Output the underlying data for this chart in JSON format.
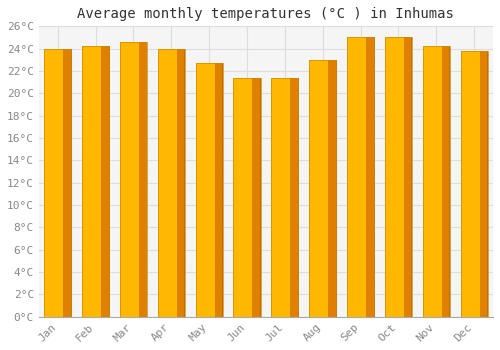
{
  "title": "Average monthly temperatures (°C ) in Inhumas",
  "months": [
    "Jan",
    "Feb",
    "Mar",
    "Apr",
    "May",
    "Jun",
    "Jul",
    "Aug",
    "Sep",
    "Oct",
    "Nov",
    "Dec"
  ],
  "values": [
    24.0,
    24.2,
    24.6,
    24.0,
    22.7,
    21.4,
    21.4,
    23.0,
    25.0,
    25.0,
    24.2,
    23.8
  ],
  "bar_color_left": "#FFB300",
  "bar_color_right": "#E07800",
  "bar_face_color": "#FFA500",
  "bar_edge_color": "#CC7700",
  "background_color": "#FFFFFF",
  "plot_bg_color": "#F5F5F5",
  "grid_color": "#DDDDDD",
  "ylim": [
    0,
    26
  ],
  "ytick_step": 2,
  "title_fontsize": 10,
  "tick_fontsize": 8,
  "font_family": "monospace",
  "tick_color": "#888888",
  "title_color": "#333333"
}
